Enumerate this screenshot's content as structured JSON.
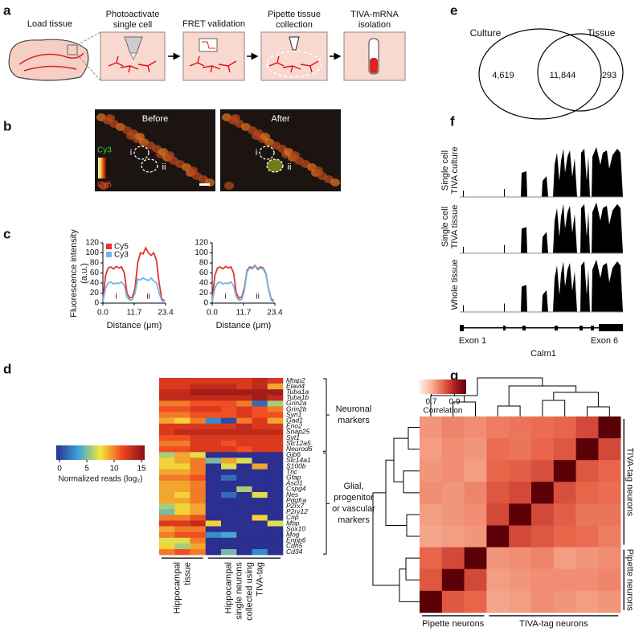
{
  "panel_labels": [
    "a",
    "b",
    "c",
    "d",
    "e",
    "f",
    "g"
  ],
  "a": {
    "steps": [
      [
        "Load tissue"
      ],
      [
        "Photoactivate",
        "single cell"
      ],
      [
        "FRET validation"
      ],
      [
        "Pipette tissue",
        "collection"
      ],
      [
        "TIVA-mRNA",
        "isolation"
      ]
    ]
  },
  "b": {
    "images": [
      "Before",
      "After"
    ],
    "cells": [
      "i",
      "ii"
    ],
    "channels": [
      "Cy3",
      "Cy5"
    ]
  },
  "c": {
    "type": "line",
    "ylabel": [
      "Fluorescence intensity",
      "(a.u.)"
    ],
    "xlabel": "Distance (μm)",
    "ylim": [
      0,
      120
    ],
    "yticks": [
      0,
      20,
      40,
      60,
      80,
      100,
      120
    ],
    "xlim": [
      0,
      23.4
    ],
    "xticks": [
      {
        "value": 0,
        "label": "0.0"
      },
      11.7,
      23.4
    ],
    "regions": [
      "i",
      "ii"
    ],
    "x": [
      0,
      1,
      2,
      3,
      4,
      5,
      6,
      7,
      8,
      9,
      10,
      11,
      12,
      13,
      14,
      15,
      16,
      17,
      18,
      19,
      20,
      21,
      22,
      23
    ],
    "plots": [
      {
        "series": [
          {
            "name": "Cy5",
            "color": "#e8322b",
            "values": [
              5,
              55,
              70,
              72,
              68,
              73,
              70,
              72,
              60,
              20,
              10,
              12,
              30,
              80,
              100,
              98,
              110,
              100,
              95,
              100,
              85,
              40,
              8,
              5
            ]
          },
          {
            "name": "Cy3",
            "color": "#6cb8e6",
            "values": [
              3,
              30,
              40,
              42,
              38,
              40,
              39,
              42,
              35,
              12,
              6,
              7,
              20,
              48,
              46,
              50,
              47,
              45,
              50,
              44,
              40,
              20,
              5,
              3
            ]
          }
        ]
      },
      {
        "series": [
          {
            "color": "#e8322b",
            "values": [
              5,
              55,
              70,
              72,
              68,
              73,
              70,
              72,
              60,
              20,
              10,
              12,
              30,
              65,
              72,
              70,
              75,
              68,
              72,
              70,
              60,
              30,
              8,
              5
            ]
          },
          {
            "color": "#6cb8e6",
            "values": [
              3,
              30,
              40,
              42,
              38,
              40,
              39,
              42,
              35,
              12,
              6,
              7,
              25,
              62,
              70,
              68,
              74,
              66,
              70,
              68,
              58,
              28,
              6,
              3
            ]
          }
        ]
      }
    ]
  },
  "d": {
    "type": "heatmap",
    "colormap": [
      "#2b2f8f",
      "#3aa3d9",
      "#f4e83b",
      "#ef4420",
      "#8a0f16"
    ],
    "colorbar": {
      "lim": [
        0,
        15
      ],
      "ticks": [
        0,
        5,
        10,
        15
      ],
      "label": "Normalized reads (log₂)"
    },
    "column_groups": [
      [
        "Hippocampal",
        "tissue"
      ],
      [
        "Hippocampal",
        "single neurons",
        "collected using",
        "TIVA-tag"
      ]
    ],
    "row_groups": [
      {
        "label": [
          "Neuronal",
          "markers"
        ],
        "genes": [
          "Mtap2",
          "Elavl4",
          "Tuba1a",
          "Tuba1b",
          "Grin2a",
          "Grin2b",
          "Syn1",
          "Gad1",
          "Eno2",
          "Snap25",
          "Syt1",
          "Slc12a5",
          "Neurod6"
        ],
        "values": [
          [
            12,
            12,
            12,
            12,
            12,
            12,
            13,
            12
          ],
          [
            12,
            12,
            13,
            13,
            13,
            12,
            13,
            9
          ],
          [
            13,
            13,
            14,
            14,
            14,
            14,
            14,
            14
          ],
          [
            13,
            13,
            13,
            13,
            13,
            13,
            14,
            13
          ],
          [
            10,
            10,
            11,
            11,
            11,
            10,
            2,
            6
          ],
          [
            11,
            11,
            12,
            12,
            11,
            12,
            11,
            10
          ],
          [
            10,
            10,
            11,
            11,
            11,
            12,
            11,
            11
          ],
          [
            9,
            8,
            10,
            3,
            1,
            10,
            12,
            9
          ],
          [
            12,
            12,
            12,
            12,
            12,
            13,
            12,
            12
          ],
          [
            12,
            13,
            13,
            13,
            13,
            13,
            13,
            13
          ],
          [
            11,
            11,
            12,
            12,
            12,
            12,
            12,
            12
          ],
          [
            10,
            10,
            12,
            12,
            11,
            12,
            12,
            12
          ],
          [
            11,
            11,
            12,
            12,
            12,
            11,
            12,
            12
          ]
        ]
      },
      {
        "label": [
          "Glial,",
          "progenitor",
          "or vascular",
          "markers"
        ],
        "genes": [
          "Gjb6",
          "Slc14a1",
          "S100b",
          "Tnc",
          "Gfap",
          "Ascl1",
          "Cspg4",
          "Nes",
          "Pdgfra",
          "P2rx7",
          "P2ry12",
          "Cnp",
          "Mbp",
          "Sox10",
          "Mog",
          "Enpp6",
          "Cdh5",
          "Cd34"
        ],
        "values": [
          [
            6,
            9,
            7,
            0,
            0,
            0,
            0,
            0
          ],
          [
            8,
            9,
            10,
            5,
            9,
            7,
            0,
            0
          ],
          [
            8,
            8,
            10,
            0,
            7,
            0,
            9,
            0
          ],
          [
            9,
            9,
            10,
            0,
            0,
            0,
            0,
            0
          ],
          [
            10,
            10,
            11,
            0,
            2,
            0,
            0,
            0
          ],
          [
            9,
            9,
            10,
            0,
            0,
            0,
            0,
            0
          ],
          [
            9,
            9,
            10,
            0,
            0,
            6,
            0,
            0
          ],
          [
            9,
            8,
            10,
            0,
            2,
            0,
            7,
            0
          ],
          [
            9,
            9,
            10,
            0,
            0,
            0,
            0,
            0
          ],
          [
            6,
            8,
            9,
            0,
            0,
            0,
            0,
            0
          ],
          [
            5,
            8,
            9,
            0,
            0,
            0,
            0,
            0
          ],
          [
            10,
            10,
            11,
            0,
            0,
            0,
            8,
            0
          ],
          [
            12,
            12,
            13,
            8,
            0,
            0,
            0,
            7
          ],
          [
            9,
            10,
            10,
            0,
            0,
            0,
            0,
            0
          ],
          [
            10,
            11,
            11,
            3,
            4,
            0,
            0,
            0
          ],
          [
            7,
            7,
            10,
            0,
            0,
            0,
            0,
            0
          ],
          [
            8,
            6,
            9,
            0,
            0,
            0,
            0,
            0
          ],
          [
            10,
            11,
            10,
            0,
            5,
            0,
            3,
            0
          ]
        ]
      }
    ]
  },
  "e": {
    "sets": [
      "Culture",
      "Tissue"
    ],
    "counts": [
      "4,619",
      "11,844",
      "293"
    ]
  },
  "f": {
    "tracks": [
      [
        "Single cell",
        "TIVA culture"
      ],
      [
        "Single cell",
        "TIVA tissue"
      ],
      [
        "Whole tissue"
      ]
    ],
    "gene": "Calm1",
    "exons": [
      "Exon 1",
      "Exon 6"
    ]
  },
  "g": {
    "type": "heatmap",
    "colormap": [
      "#fff0e8",
      "#f7b59b",
      "#e8654a",
      "#b0201f",
      "#5c0008"
    ],
    "colorbar": {
      "lim": [
        0.6,
        1.0
      ],
      "ticks": [
        0.7,
        0.9
      ],
      "label": "Correlation"
    },
    "groups": [
      "Pipette neurons",
      "TIVA-tag neurons"
    ],
    "values": [
      [
        0.74,
        0.76,
        0.75,
        0.77,
        0.78,
        0.79,
        0.8,
        0.84,
        1
      ],
      [
        0.73,
        0.75,
        0.74,
        0.79,
        0.78,
        0.8,
        0.82,
        1,
        0.84
      ],
      [
        0.74,
        0.75,
        0.73,
        0.8,
        0.81,
        0.83,
        1,
        0.82,
        0.8
      ],
      [
        0.75,
        0.74,
        0.76,
        0.82,
        0.84,
        1,
        0.83,
        0.8,
        0.79
      ],
      [
        0.73,
        0.74,
        0.75,
        0.84,
        1,
        0.84,
        0.81,
        0.78,
        0.78
      ],
      [
        0.72,
        0.73,
        0.74,
        1,
        0.84,
        0.82,
        0.8,
        0.79,
        0.77
      ],
      [
        0.8,
        0.84,
        1,
        0.74,
        0.75,
        0.76,
        0.73,
        0.74,
        0.75
      ],
      [
        0.82,
        1,
        0.84,
        0.73,
        0.74,
        0.75,
        0.75,
        0.75,
        0.76
      ],
      [
        1,
        0.82,
        0.8,
        0.72,
        0.73,
        0.75,
        0.74,
        0.73,
        0.74
      ]
    ]
  }
}
